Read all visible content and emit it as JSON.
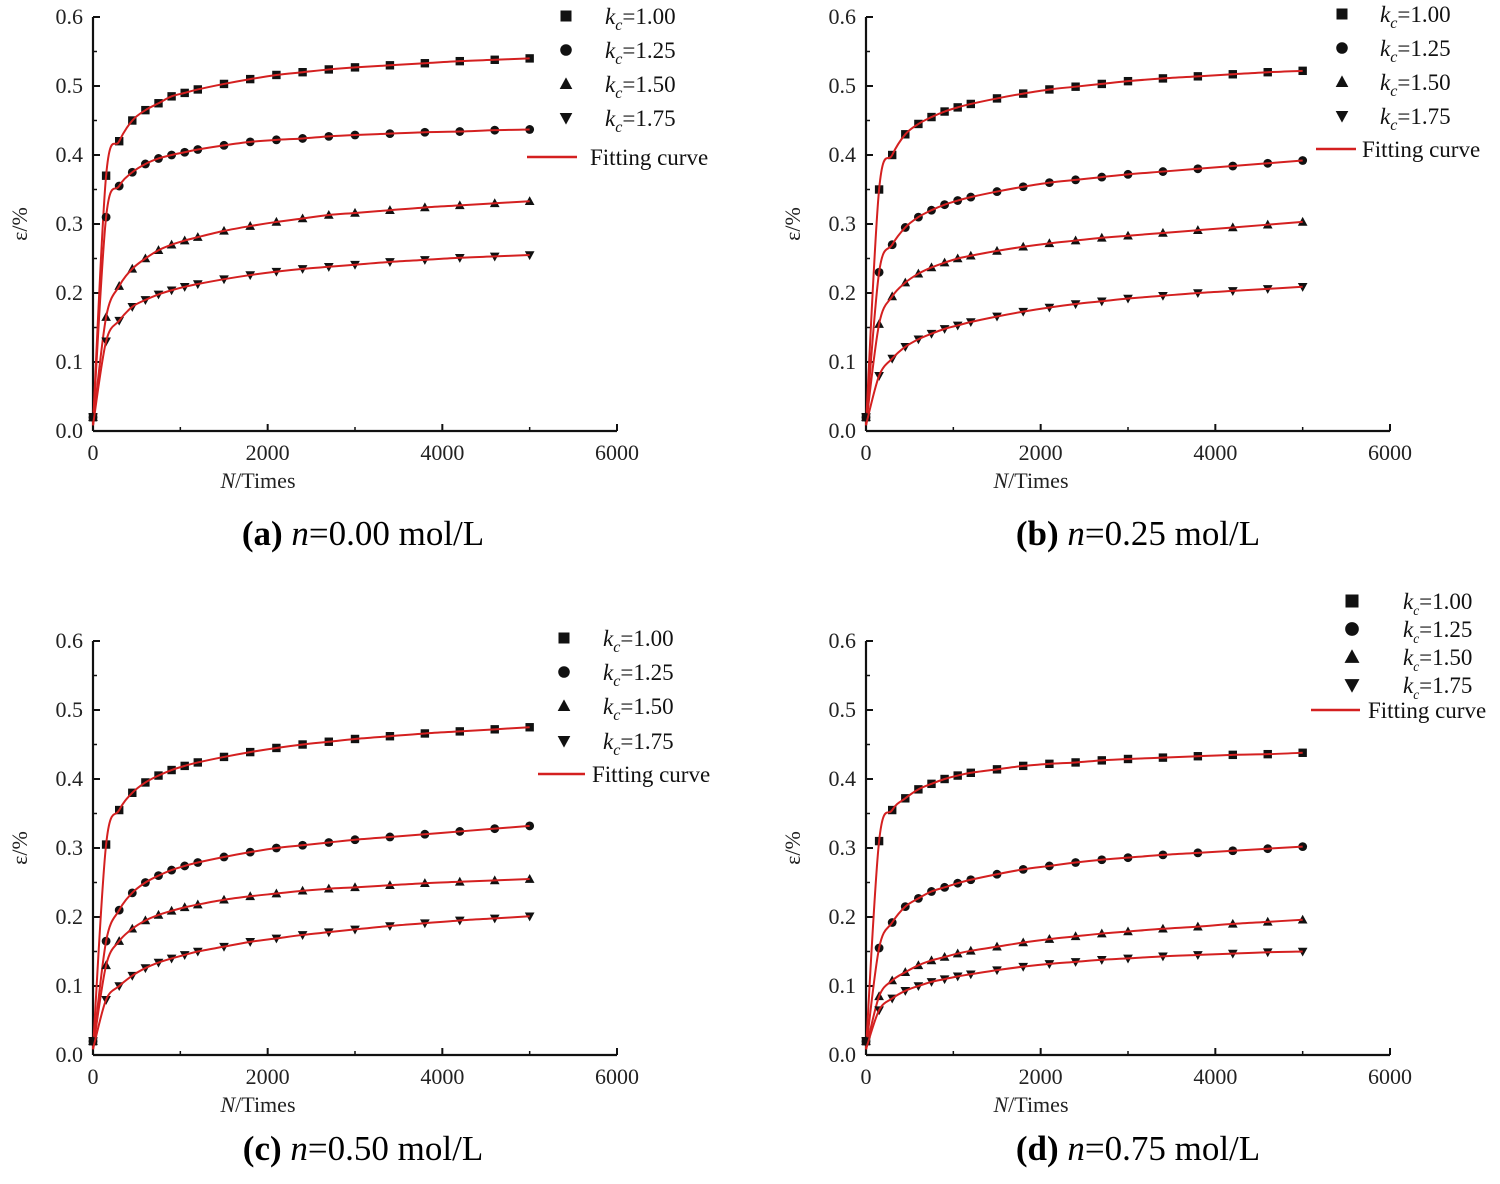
{
  "colors": {
    "marker": "#111111",
    "fit": "#d42020",
    "axis": "#111111"
  },
  "chart_data": [
    {
      "type": "scatter",
      "caption": {
        "label": "(a)",
        "var": "n",
        "text": "=0.00 mol/L"
      },
      "xlabel": {
        "var": "N",
        "text": "/Times"
      },
      "ylabel": "ε/%",
      "xlim": [
        0,
        6000
      ],
      "ylim": [
        0,
        0.6
      ],
      "xticks": [
        "0",
        "2000",
        "4000",
        "6000"
      ],
      "yticks": [
        "0.0",
        "0.1",
        "0.2",
        "0.3",
        "0.4",
        "0.5",
        "0.6"
      ],
      "legend_position": "top-right",
      "fit_label": "Fitting curve",
      "x": [
        0,
        150,
        300,
        450,
        600,
        750,
        900,
        1050,
        1200,
        1500,
        1800,
        2100,
        2400,
        2700,
        3000,
        3400,
        3800,
        4200,
        4600,
        5000
      ],
      "series": [
        {
          "name": "kc=1.00",
          "marker": "square",
          "values": [
            0.02,
            0.37,
            0.42,
            0.45,
            0.465,
            0.475,
            0.485,
            0.49,
            0.495,
            0.503,
            0.51,
            0.516,
            0.52,
            0.524,
            0.527,
            0.53,
            0.533,
            0.536,
            0.538,
            0.54
          ]
        },
        {
          "name": "kc=1.25",
          "marker": "circle",
          "values": [
            0.02,
            0.31,
            0.355,
            0.375,
            0.387,
            0.395,
            0.4,
            0.404,
            0.408,
            0.414,
            0.419,
            0.422,
            0.424,
            0.427,
            0.429,
            0.431,
            0.433,
            0.434,
            0.436,
            0.437
          ]
        },
        {
          "name": "kc=1.50",
          "marker": "triangle-up",
          "values": [
            0.02,
            0.165,
            0.21,
            0.235,
            0.25,
            0.262,
            0.27,
            0.276,
            0.281,
            0.29,
            0.297,
            0.303,
            0.308,
            0.313,
            0.316,
            0.32,
            0.324,
            0.327,
            0.33,
            0.333
          ]
        },
        {
          "name": "kc=1.75",
          "marker": "triangle-down",
          "values": [
            0.02,
            0.13,
            0.16,
            0.18,
            0.19,
            0.198,
            0.204,
            0.209,
            0.213,
            0.22,
            0.226,
            0.231,
            0.235,
            0.238,
            0.241,
            0.245,
            0.248,
            0.251,
            0.253,
            0.255
          ]
        }
      ]
    },
    {
      "type": "scatter",
      "caption": {
        "label": "(b)",
        "var": "n",
        "text": "=0.25 mol/L"
      },
      "xlabel": {
        "var": "N",
        "text": "/Times"
      },
      "ylabel": "ε/%",
      "xlim": [
        0,
        6000
      ],
      "ylim": [
        0,
        0.6
      ],
      "xticks": [
        "0",
        "2000",
        "4000",
        "6000"
      ],
      "yticks": [
        "0.0",
        "0.1",
        "0.2",
        "0.3",
        "0.4",
        "0.5",
        "0.6"
      ],
      "legend_position": "top-right",
      "fit_label": "Fitting curve",
      "x": [
        0,
        150,
        300,
        450,
        600,
        750,
        900,
        1050,
        1200,
        1500,
        1800,
        2100,
        2400,
        2700,
        3000,
        3400,
        3800,
        4200,
        4600,
        5000
      ],
      "series": [
        {
          "name": "kc=1.00",
          "marker": "square",
          "values": [
            0.02,
            0.35,
            0.4,
            0.43,
            0.445,
            0.455,
            0.463,
            0.469,
            0.474,
            0.482,
            0.489,
            0.495,
            0.499,
            0.503,
            0.507,
            0.511,
            0.514,
            0.517,
            0.52,
            0.522
          ]
        },
        {
          "name": "kc=1.25",
          "marker": "circle",
          "values": [
            0.02,
            0.23,
            0.27,
            0.295,
            0.31,
            0.32,
            0.328,
            0.334,
            0.339,
            0.347,
            0.354,
            0.36,
            0.364,
            0.368,
            0.372,
            0.376,
            0.38,
            0.384,
            0.388,
            0.392
          ]
        },
        {
          "name": "kc=1.50",
          "marker": "triangle-up",
          "values": [
            0.02,
            0.155,
            0.195,
            0.215,
            0.228,
            0.237,
            0.244,
            0.25,
            0.254,
            0.261,
            0.267,
            0.272,
            0.276,
            0.28,
            0.283,
            0.287,
            0.291,
            0.295,
            0.299,
            0.303
          ]
        },
        {
          "name": "kc=1.75",
          "marker": "triangle-down",
          "values": [
            0.02,
            0.08,
            0.105,
            0.122,
            0.133,
            0.141,
            0.148,
            0.153,
            0.158,
            0.166,
            0.173,
            0.179,
            0.184,
            0.188,
            0.192,
            0.196,
            0.2,
            0.203,
            0.206,
            0.209
          ]
        }
      ]
    },
    {
      "type": "scatter",
      "caption": {
        "label": "(c)",
        "var": "n",
        "text": "=0.50 mol/L"
      },
      "xlabel": {
        "var": "N",
        "text": "/Times"
      },
      "ylabel": "ε/%",
      "xlim": [
        0,
        6000
      ],
      "ylim": [
        0,
        0.6
      ],
      "xticks": [
        "0",
        "2000",
        "4000",
        "6000"
      ],
      "yticks": [
        "0.0",
        "0.1",
        "0.2",
        "0.3",
        "0.4",
        "0.5",
        "0.6"
      ],
      "legend_position": "top-right",
      "fit_label": "Fitting curve",
      "x": [
        0,
        150,
        300,
        450,
        600,
        750,
        900,
        1050,
        1200,
        1500,
        1800,
        2100,
        2400,
        2700,
        3000,
        3400,
        3800,
        4200,
        4600,
        5000
      ],
      "series": [
        {
          "name": "kc=1.00",
          "marker": "square",
          "values": [
            0.02,
            0.305,
            0.355,
            0.38,
            0.395,
            0.405,
            0.413,
            0.419,
            0.424,
            0.432,
            0.439,
            0.445,
            0.45,
            0.454,
            0.458,
            0.462,
            0.466,
            0.469,
            0.472,
            0.475
          ]
        },
        {
          "name": "kc=1.25",
          "marker": "circle",
          "values": [
            0.02,
            0.165,
            0.21,
            0.235,
            0.25,
            0.26,
            0.268,
            0.274,
            0.279,
            0.287,
            0.294,
            0.3,
            0.304,
            0.308,
            0.312,
            0.316,
            0.32,
            0.324,
            0.328,
            0.332
          ]
        },
        {
          "name": "kc=1.50",
          "marker": "triangle-up",
          "values": [
            0.02,
            0.13,
            0.165,
            0.183,
            0.195,
            0.203,
            0.209,
            0.214,
            0.218,
            0.225,
            0.23,
            0.234,
            0.238,
            0.241,
            0.243,
            0.246,
            0.249,
            0.251,
            0.253,
            0.255
          ]
        },
        {
          "name": "kc=1.75",
          "marker": "triangle-down",
          "values": [
            0.02,
            0.08,
            0.1,
            0.115,
            0.126,
            0.134,
            0.14,
            0.145,
            0.15,
            0.157,
            0.164,
            0.169,
            0.174,
            0.178,
            0.182,
            0.187,
            0.191,
            0.195,
            0.198,
            0.201
          ]
        }
      ]
    },
    {
      "type": "scatter",
      "caption": {
        "label": "(d)",
        "var": "n",
        "text": "=0.75 mol/L"
      },
      "xlabel": {
        "var": "N",
        "text": "/Times"
      },
      "ylabel": "ε/%",
      "xlim": [
        0,
        6000
      ],
      "ylim": [
        0,
        0.6
      ],
      "xticks": [
        "0",
        "2000",
        "4000",
        "6000"
      ],
      "yticks": [
        "0.0",
        "0.1",
        "0.2",
        "0.3",
        "0.4",
        "0.5",
        "0.6"
      ],
      "legend_position": "top-right",
      "fit_label": "Fitting curve",
      "x": [
        0,
        150,
        300,
        450,
        600,
        750,
        900,
        1050,
        1200,
        1500,
        1800,
        2100,
        2400,
        2700,
        3000,
        3400,
        3800,
        4200,
        4600,
        5000
      ],
      "series": [
        {
          "name": "kc=1.00",
          "marker": "square",
          "values": [
            0.02,
            0.31,
            0.355,
            0.372,
            0.385,
            0.393,
            0.4,
            0.405,
            0.409,
            0.414,
            0.419,
            0.422,
            0.424,
            0.427,
            0.429,
            0.431,
            0.433,
            0.435,
            0.436,
            0.438
          ]
        },
        {
          "name": "kc=1.25",
          "marker": "circle",
          "values": [
            0.02,
            0.155,
            0.192,
            0.215,
            0.227,
            0.237,
            0.243,
            0.249,
            0.254,
            0.262,
            0.269,
            0.274,
            0.279,
            0.283,
            0.286,
            0.29,
            0.293,
            0.296,
            0.299,
            0.302
          ]
        },
        {
          "name": "kc=1.50",
          "marker": "triangle-up",
          "values": [
            0.02,
            0.085,
            0.108,
            0.12,
            0.13,
            0.137,
            0.142,
            0.147,
            0.151,
            0.157,
            0.163,
            0.168,
            0.172,
            0.176,
            0.179,
            0.183,
            0.186,
            0.19,
            0.193,
            0.196
          ]
        },
        {
          "name": "kc=1.75",
          "marker": "triangle-down",
          "values": [
            0.02,
            0.065,
            0.082,
            0.093,
            0.1,
            0.106,
            0.11,
            0.114,
            0.117,
            0.123,
            0.128,
            0.132,
            0.135,
            0.138,
            0.14,
            0.143,
            0.145,
            0.147,
            0.149,
            0.15
          ]
        }
      ]
    }
  ]
}
